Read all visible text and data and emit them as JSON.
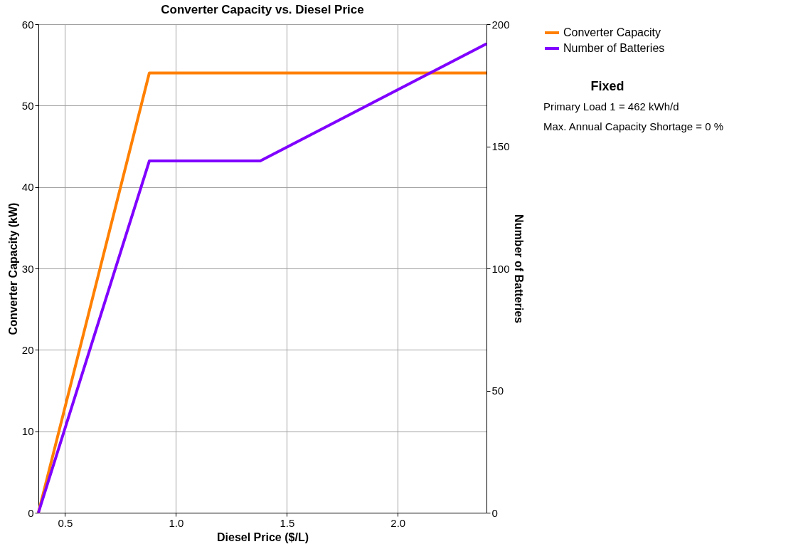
{
  "chart_data": {
    "type": "line",
    "title": "Converter Capacity vs. Diesel Price",
    "xlabel": "Diesel Price ($/L)",
    "ylabel": "Converter Capacity (kW)",
    "y2label": "Number of Batteries",
    "xlim": [
      0.38,
      2.4
    ],
    "xticks": [
      {
        "value": 0.5,
        "label": "0.5"
      },
      {
        "value": 1.0,
        "label": "1.0"
      },
      {
        "value": 1.5,
        "label": "1.5"
      },
      {
        "value": 2.0,
        "label": "2.0"
      }
    ],
    "ylim": [
      0,
      60
    ],
    "yticks": [
      0,
      10,
      20,
      30,
      40,
      50,
      60
    ],
    "y2lim": [
      0,
      200
    ],
    "y2ticks": [
      0,
      50,
      100,
      150,
      200
    ],
    "series": [
      {
        "name": "Converter Capacity",
        "color": "#ff8000",
        "x": [
          0.38,
          0.88,
          2.4
        ],
        "values": [
          0,
          54,
          54
        ]
      },
      {
        "name": "Number of Batteries",
        "color": "#8000ff",
        "axis": "y2",
        "x": [
          0.38,
          0.88,
          1.38,
          2.4
        ],
        "values": [
          0,
          144,
          144,
          192
        ]
      }
    ],
    "grid": true,
    "legend": "top right",
    "marker": "none",
    "line_style": "solid",
    "annotations": [
      "Fixed",
      "Primary Load 1 = 462 kWh/d",
      "Max. Annual Capacity Shortage = 0 %"
    ]
  }
}
